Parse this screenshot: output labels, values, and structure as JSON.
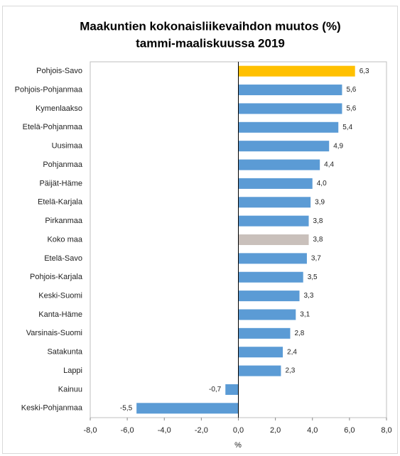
{
  "chart_data": {
    "type": "barh",
    "title": [
      "Maakuntien kokonaisliikevaihdon muutos (%)",
      "tammi-maaliskuussa 2019"
    ],
    "x_label": "%",
    "categories": [
      "Pohjois-Savo",
      "Pohjois-Pohjanmaa",
      "Kymenlaakso",
      "Etelä-Pohjanmaa",
      "Uusimaa",
      "Pohjanmaa",
      "Päijät-Häme",
      "Etelä-Karjala",
      "Pirkanmaa",
      "Koko maa",
      "Etelä-Savo",
      "Pohjois-Karjala",
      "Keski-Suomi",
      "Kanta-Häme",
      "Varsinais-Suomi",
      "Satakunta",
      "Lappi",
      "Kainuu",
      "Keski-Pohjanmaa"
    ],
    "values": [
      6.3,
      5.6,
      5.6,
      5.4,
      4.9,
      4.4,
      4.0,
      3.9,
      3.8,
      3.8,
      3.7,
      3.5,
      3.3,
      3.1,
      2.8,
      2.4,
      2.3,
      -0.7,
      -5.5
    ],
    "value_labels": [
      "6,3",
      "5,6",
      "5,6",
      "5,4",
      "4,9",
      "4,4",
      "4,0",
      "3,9",
      "3,8",
      "3,8",
      "3,7",
      "3,5",
      "3,3",
      "3,1",
      "2,8",
      "2,4",
      "2,3",
      "-0,7",
      "-5,5"
    ],
    "colors": [
      "#FFC000",
      "#5B9BD5",
      "#5B9BD5",
      "#5B9BD5",
      "#5B9BD5",
      "#5B9BD5",
      "#5B9BD5",
      "#5B9BD5",
      "#5B9BD5",
      "#C9C0BB",
      "#5B9BD5",
      "#5B9BD5",
      "#5B9BD5",
      "#5B9BD5",
      "#5B9BD5",
      "#5B9BD5",
      "#5B9BD5",
      "#5B9BD5",
      "#5B9BD5"
    ],
    "xlim": [
      -8,
      8
    ],
    "xticks": [
      {
        "value": -8,
        "label": "-8,0"
      },
      {
        "value": -6,
        "label": "-6,0"
      },
      {
        "value": -4,
        "label": "-4,0"
      },
      {
        "value": -2,
        "label": "-2,0"
      },
      {
        "value": 0,
        "label": "0,0"
      },
      {
        "value": 2,
        "label": "2,0"
      },
      {
        "value": 4,
        "label": "4,0"
      },
      {
        "value": 6,
        "label": "6,0"
      },
      {
        "value": 8,
        "label": "8,0"
      }
    ]
  }
}
